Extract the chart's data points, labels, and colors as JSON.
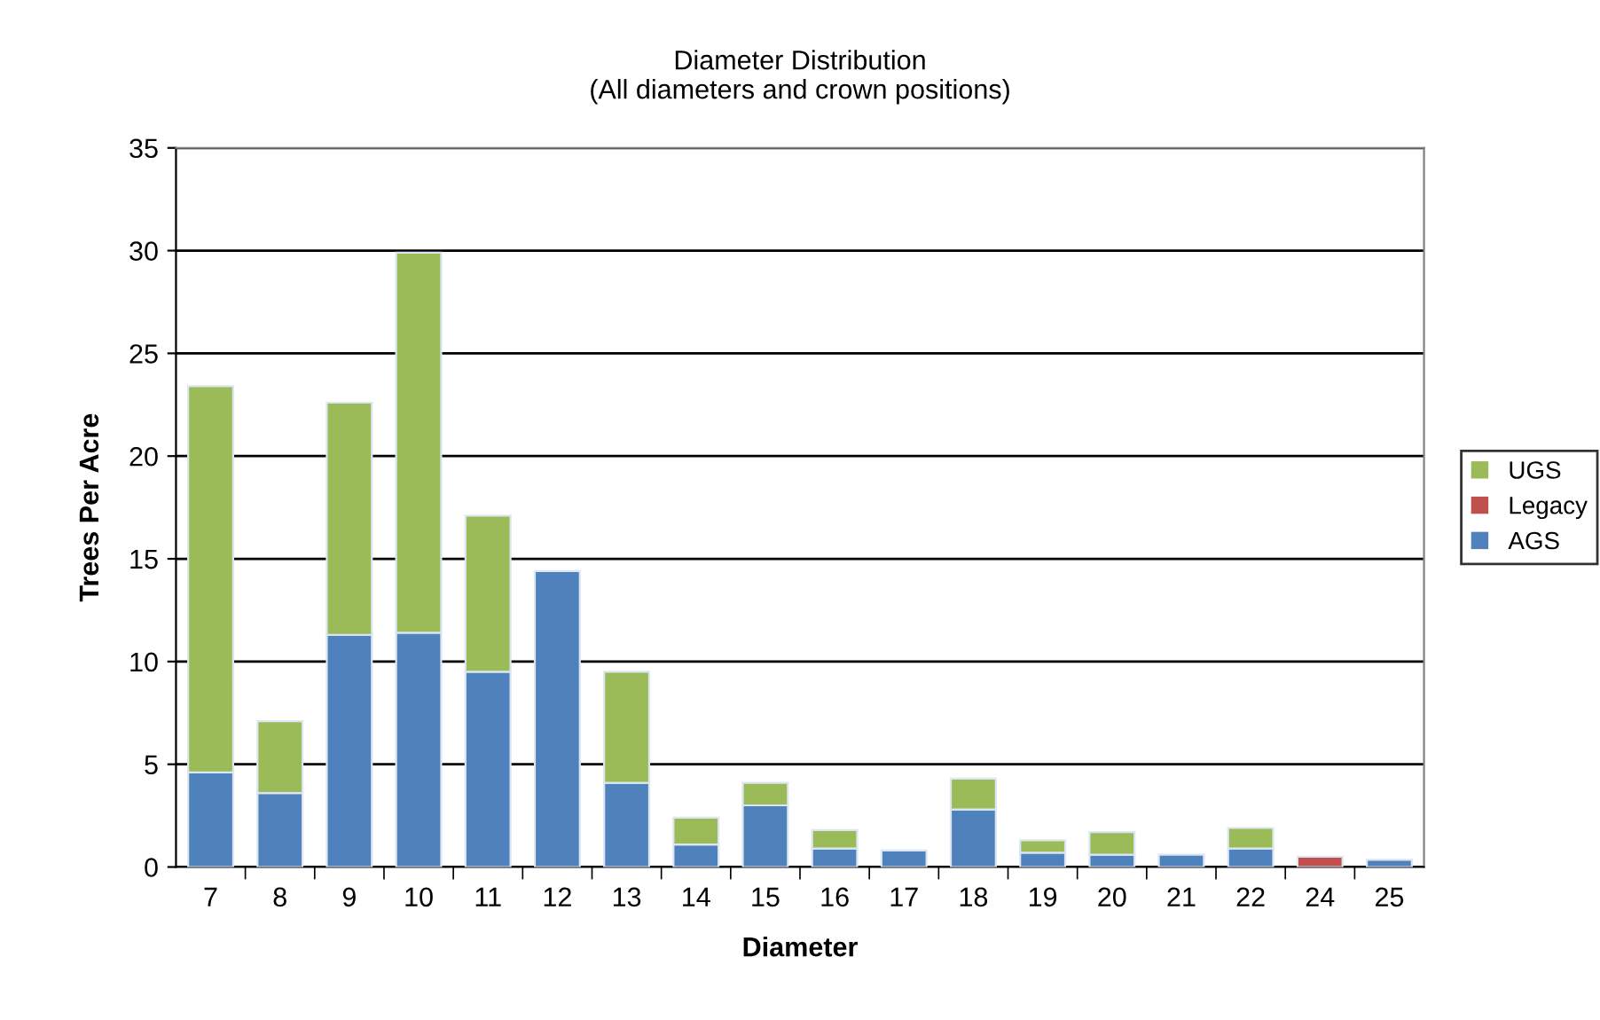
{
  "chart_data": {
    "type": "bar",
    "title": "Diameter Distribution\n(All diameters and crown positions)",
    "xlabel": "Diameter",
    "ylabel": "Trees Per Acre",
    "categories": [
      "7",
      "8",
      "9",
      "10",
      "11",
      "12",
      "13",
      "14",
      "15",
      "16",
      "17",
      "18",
      "19",
      "20",
      "21",
      "22",
      "24",
      "25"
    ],
    "stacked": true,
    "series": [
      {
        "name": "AGS",
        "color": "#4f81bd",
        "values": [
          4.6,
          3.6,
          11.3,
          11.4,
          9.5,
          14.4,
          4.1,
          1.1,
          3.0,
          0.9,
          0.8,
          2.8,
          0.7,
          0.6,
          0.6,
          0.9,
          null,
          0.35
        ]
      },
      {
        "name": "Legacy",
        "color": "#c0504d",
        "values": [
          null,
          null,
          null,
          null,
          null,
          null,
          null,
          null,
          null,
          null,
          null,
          null,
          null,
          null,
          null,
          null,
          0.5,
          null
        ]
      },
      {
        "name": "UGS",
        "color": "#9bbb59",
        "values": [
          18.8,
          3.5,
          11.3,
          18.5,
          7.6,
          null,
          5.4,
          1.3,
          1.1,
          0.9,
          null,
          1.5,
          0.6,
          1.1,
          null,
          1.0,
          null,
          null
        ]
      }
    ],
    "ylim": [
      0,
      35
    ],
    "yticks": [
      0,
      5,
      10,
      15,
      20,
      25,
      30,
      35
    ],
    "grid": "y",
    "legend": "right"
  }
}
